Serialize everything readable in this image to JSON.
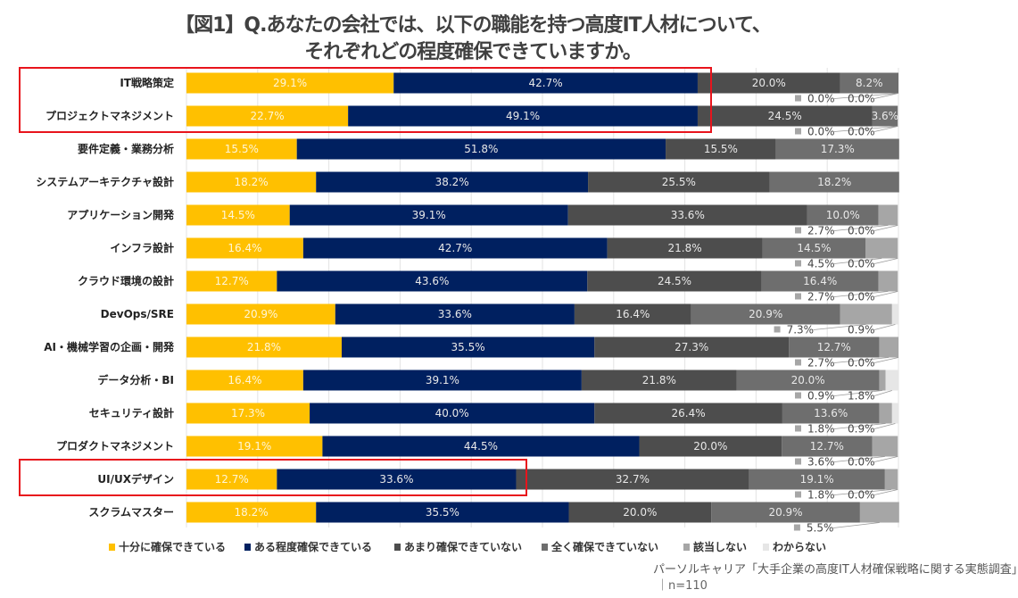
{
  "title_line1": "【図1】Q.あなたの会社では、以下の職能を持つ高度IT人材について、",
  "title_line2": "それぞれどの程度確保できていますか。",
  "source": "パーソルキャリア「大手企業の高度IT人材確保戦略に関する実態調査」",
  "sample": "｜n=110",
  "highlighted_rows": [
    "IT戦略策定",
    "プロジェクトマネジメント",
    "UI/UXデザイン"
  ],
  "highlight_color": "#E8141C",
  "chart_data": {
    "type": "bar",
    "orientation": "horizontal",
    "stacked": "100%",
    "xlim": [
      0,
      100
    ],
    "grid": true,
    "legend_position": "bottom",
    "categories": [
      "IT戦略策定",
      "プロジェクトマネジメント",
      "要件定義・業務分析",
      "システムアーキテクチャ設計",
      "アプリケーション開発",
      "インフラ設計",
      "クラウド環境の設計",
      "DevOps/SRE",
      "AI・機械学習の企画・開発",
      "データ分析・BI",
      "セキュリティ設計",
      "プロダクトマネジメント",
      "UI/UXデザイン",
      "スクラムマスター"
    ],
    "series": [
      {
        "name": "十分に確保できている",
        "color": "#FFC000",
        "values": [
          29.1,
          22.7,
          15.5,
          18.2,
          14.5,
          16.4,
          12.7,
          20.9,
          21.8,
          16.4,
          17.3,
          19.1,
          12.7,
          18.2
        ]
      },
      {
        "name": "ある程度確保できている",
        "color": "#002060",
        "values": [
          42.7,
          49.1,
          51.8,
          38.2,
          39.1,
          42.7,
          43.6,
          33.6,
          35.5,
          39.1,
          40.0,
          44.5,
          33.6,
          35.5
        ]
      },
      {
        "name": "あまり確保できていない",
        "color": "#4D4D4D",
        "values": [
          20.0,
          24.5,
          15.5,
          25.5,
          33.6,
          21.8,
          24.5,
          16.4,
          27.3,
          21.8,
          26.4,
          20.0,
          32.7,
          20.0
        ]
      },
      {
        "name": "全く確保できていない",
        "color": "#6E6E6E",
        "values": [
          8.2,
          3.6,
          17.3,
          18.2,
          10.0,
          14.5,
          16.4,
          20.9,
          12.7,
          20.0,
          13.6,
          12.7,
          19.1,
          20.9
        ]
      },
      {
        "name": "該当しない",
        "color": "#A6A6A6",
        "values": [
          0.0,
          0.0,
          null,
          null,
          2.7,
          4.5,
          2.7,
          7.3,
          2.7,
          0.9,
          1.8,
          3.6,
          1.8,
          5.5
        ]
      },
      {
        "name": "わからない",
        "color": "#E6E6E6",
        "values": [
          0.0,
          0.0,
          null,
          null,
          0.0,
          0.0,
          0.0,
          0.9,
          0.0,
          1.8,
          0.9,
          0.0,
          0.0,
          null
        ]
      }
    ]
  }
}
